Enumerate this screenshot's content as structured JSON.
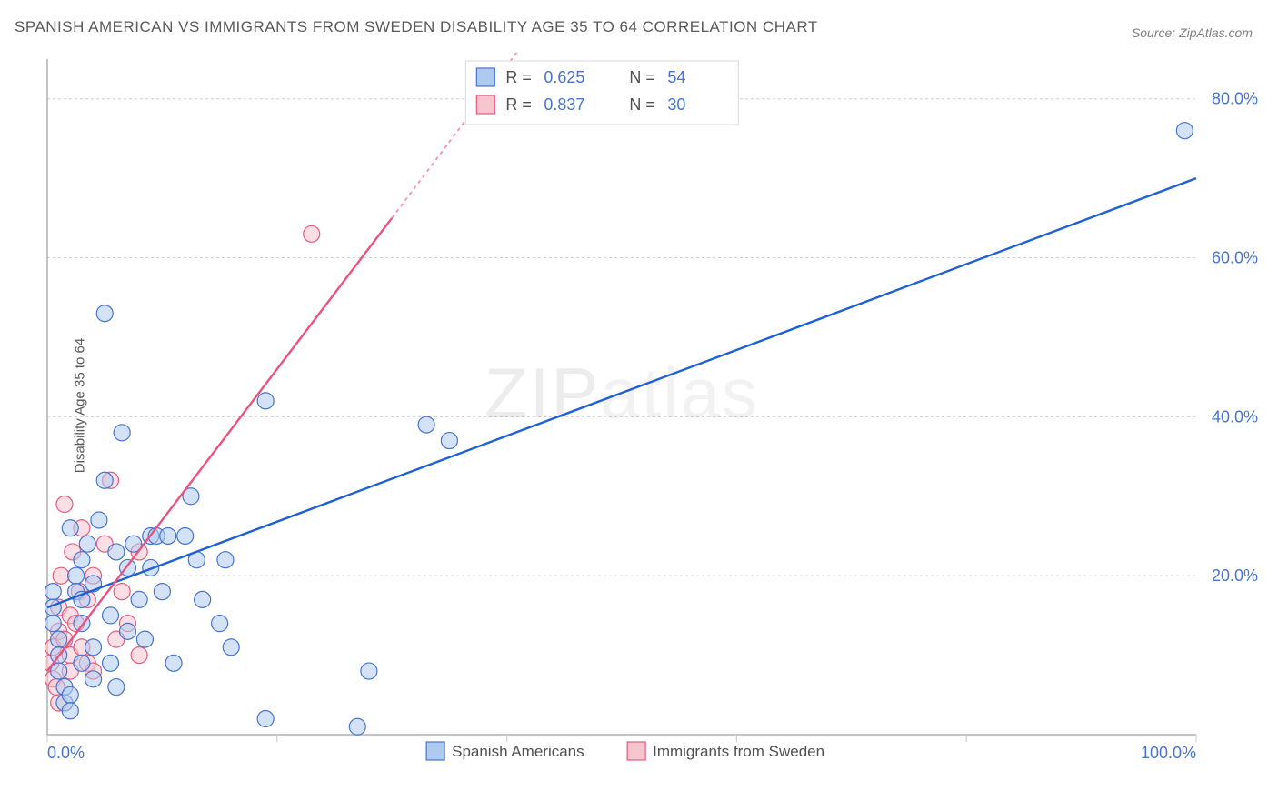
{
  "title": "SPANISH AMERICAN VS IMMIGRANTS FROM SWEDEN DISABILITY AGE 35 TO 64 CORRELATION CHART",
  "source": "Source: ZipAtlas.com",
  "ylabel": "Disability Age 35 to 64",
  "watermark": "ZIPatlas",
  "chart": {
    "type": "scatter",
    "xlim": [
      0,
      100
    ],
    "ylim": [
      0,
      85
    ],
    "background_color": "#ffffff",
    "grid_color": "#cfcfcf",
    "axis_color": "#b0b0b0",
    "tick_label_color": "#4774d0",
    "tick_fontsize": 18,
    "marker_radius": 9,
    "marker_opacity": 0.55,
    "x_ticks": [
      0,
      20,
      40,
      60,
      80,
      100
    ],
    "x_tick_labels_shown": {
      "0": "0.0%",
      "100": "100.0%"
    },
    "y_gridlines": [
      20,
      40,
      60,
      80
    ],
    "y_tick_labels": {
      "20": "20.0%",
      "40": "40.0%",
      "60": "60.0%",
      "80": "80.0%"
    },
    "series": [
      {
        "name": "Spanish Americans",
        "fill": "#aecbef",
        "stroke": "#4774d0",
        "R": 0.625,
        "N": 54,
        "trend": {
          "x1": 0,
          "y1": 16,
          "x2": 100,
          "y2": 70,
          "color": "#1f60d6",
          "width": 2.4,
          "dash": null,
          "extrapolate_dash": "4 4"
        },
        "points": [
          [
            0.5,
            18
          ],
          [
            0.5,
            16
          ],
          [
            0.5,
            14
          ],
          [
            1,
            12
          ],
          [
            1,
            10
          ],
          [
            1,
            8
          ],
          [
            1.5,
            6
          ],
          [
            1.5,
            4
          ],
          [
            2,
            5
          ],
          [
            2,
            3
          ],
          [
            2.5,
            20
          ],
          [
            2.5,
            18
          ],
          [
            3,
            22
          ],
          [
            3,
            17
          ],
          [
            3,
            14
          ],
          [
            3.5,
            24
          ],
          [
            4,
            19
          ],
          [
            4,
            11
          ],
          [
            4.5,
            27
          ],
          [
            5,
            53
          ],
          [
            5,
            32
          ],
          [
            5.5,
            15
          ],
          [
            6,
            23
          ],
          [
            6.5,
            38
          ],
          [
            7,
            21
          ],
          [
            7,
            13
          ],
          [
            7.5,
            24
          ],
          [
            8,
            17
          ],
          [
            8.5,
            12
          ],
          [
            9,
            21
          ],
          [
            9,
            25
          ],
          [
            9.5,
            25
          ],
          [
            10,
            18
          ],
          [
            10.5,
            25
          ],
          [
            11,
            9
          ],
          [
            12,
            25
          ],
          [
            12.5,
            30
          ],
          [
            13,
            22
          ],
          [
            13.5,
            17
          ],
          [
            15,
            14
          ],
          [
            15.5,
            22
          ],
          [
            16,
            11
          ],
          [
            19,
            42
          ],
          [
            19,
            2
          ],
          [
            27,
            1
          ],
          [
            28,
            8
          ],
          [
            33,
            39
          ],
          [
            35,
            37
          ],
          [
            99,
            76
          ],
          [
            2,
            26
          ],
          [
            3,
            9
          ],
          [
            4,
            7
          ],
          [
            5.5,
            9
          ],
          [
            6,
            6
          ]
        ]
      },
      {
        "name": "Immigrants from Sweden",
        "fill": "#f7c5ce",
        "stroke": "#e55b80",
        "R": 0.837,
        "N": 30,
        "trend": {
          "x1": 0,
          "y1": 8,
          "x2": 30,
          "y2": 65,
          "color": "#ea5380",
          "width": 2.4,
          "dash": null,
          "extrapolate_to": [
            42,
            88
          ],
          "extrapolate_dash": "4 4"
        },
        "points": [
          [
            0.3,
            9
          ],
          [
            0.5,
            7
          ],
          [
            0.5,
            11
          ],
          [
            0.8,
            6
          ],
          [
            1,
            4
          ],
          [
            1,
            13
          ],
          [
            1,
            16
          ],
          [
            1.2,
            20
          ],
          [
            1.5,
            29
          ],
          [
            1.5,
            12
          ],
          [
            2,
            10
          ],
          [
            2,
            8
          ],
          [
            2,
            15
          ],
          [
            2.2,
            23
          ],
          [
            2.5,
            14
          ],
          [
            2.8,
            18
          ],
          [
            3,
            26
          ],
          [
            3,
            11
          ],
          [
            3.5,
            9
          ],
          [
            3.5,
            17
          ],
          [
            4,
            20
          ],
          [
            4,
            8
          ],
          [
            5,
            24
          ],
          [
            5.5,
            32
          ],
          [
            6,
            12
          ],
          [
            6.5,
            18
          ],
          [
            7,
            14
          ],
          [
            8,
            10
          ],
          [
            8,
            23
          ],
          [
            23,
            63
          ]
        ]
      }
    ],
    "legend_top": {
      "rows": [
        {
          "swatch": "blue",
          "R_label": "R =",
          "R_val": "0.625",
          "N_label": "N =",
          "N_val": "54"
        },
        {
          "swatch": "pink",
          "R_label": "R =",
          "R_val": "0.837",
          "N_label": "N =",
          "N_val": "30"
        }
      ]
    },
    "legend_bottom": {
      "items": [
        {
          "swatch": "blue",
          "label": "Spanish Americans"
        },
        {
          "swatch": "pink",
          "label": "Immigrants from Sweden"
        }
      ]
    }
  }
}
